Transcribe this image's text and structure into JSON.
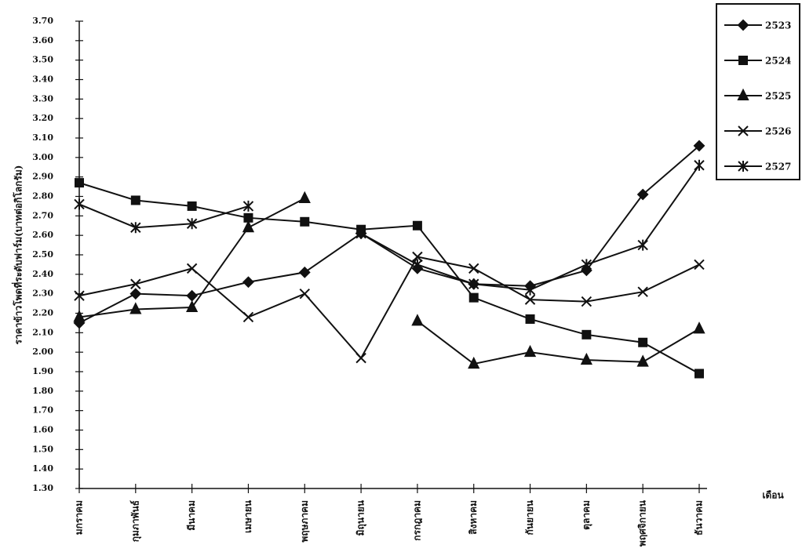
{
  "chart_data": {
    "type": "line",
    "y_label": "ราคาข้าวโพดที่ระดับฟาร์ม(บาทต่อกิโลกรัม)",
    "x_label": "เดือน",
    "categories": [
      "มกราคม",
      "กุมภาพันธ์",
      "มีนาคม",
      "เมษายน",
      "พฤษภาคม",
      "มิถุนายน",
      "กรกฎาคม",
      "สิงหาคม",
      "กันยายน",
      "ตุลาคม",
      "พฤศจิกายน",
      "ธันวาคม"
    ],
    "series": [
      {
        "name": "2523",
        "color": "#111111",
        "marker": "diamond",
        "values": [
          2.15,
          2.3,
          2.29,
          2.36,
          2.41,
          2.61,
          2.43,
          2.35,
          2.34,
          2.42,
          2.81,
          3.06
        ]
      },
      {
        "name": "2524",
        "color": "#111111",
        "marker": "square",
        "values": [
          2.87,
          2.78,
          2.75,
          2.69,
          2.67,
          2.63,
          2.65,
          2.28,
          2.17,
          2.09,
          2.05,
          1.89
        ]
      },
      {
        "name": "2525",
        "color": "#111111",
        "marker": "triangle",
        "values": [
          2.18,
          2.22,
          2.23,
          2.64,
          2.79,
          null,
          2.16,
          1.94,
          2.0,
          1.96,
          1.95,
          2.12
        ]
      },
      {
        "name": "2526",
        "color": "#111111",
        "marker": "x",
        "values": [
          2.29,
          2.35,
          2.43,
          2.18,
          2.3,
          1.97,
          2.49,
          2.43,
          2.27,
          2.26,
          2.31,
          2.45
        ]
      },
      {
        "name": "2527",
        "color": "#111111",
        "marker": "asterisk",
        "values": [
          2.76,
          2.64,
          2.66,
          2.75,
          null,
          2.61,
          2.45,
          2.35,
          2.32,
          2.45,
          2.55,
          2.96
        ]
      }
    ],
    "ylim": [
      1.3,
      3.7
    ],
    "yticks": [
      {
        "value": 1.3,
        "label": "1.30"
      },
      {
        "value": 1.4,
        "label": "1.40"
      },
      {
        "value": 1.5,
        "label": "1.50"
      },
      {
        "value": 1.6,
        "label": "1.60"
      },
      {
        "value": 1.7,
        "label": "1.70"
      },
      {
        "value": 1.8,
        "label": "1.80"
      },
      {
        "value": 1.9,
        "label": "1.90"
      },
      {
        "value": 2.0,
        "label": "2.00"
      },
      {
        "value": 2.1,
        "label": "2.10"
      },
      {
        "value": 2.2,
        "label": "2.20"
      },
      {
        "value": 2.3,
        "label": "2.30"
      },
      {
        "value": 2.4,
        "label": "2.40"
      },
      {
        "value": 2.5,
        "label": "2.50"
      },
      {
        "value": 2.6,
        "label": "2.60"
      },
      {
        "value": 2.7,
        "label": "2.70"
      },
      {
        "value": 2.8,
        "label": "2.80"
      },
      {
        "value": 2.9,
        "label": "2.90"
      },
      {
        "value": 3.0,
        "label": "3.00"
      },
      {
        "value": 3.1,
        "label": "3.10"
      },
      {
        "value": 3.2,
        "label": "3.20"
      },
      {
        "value": 3.3,
        "label": "3.30"
      },
      {
        "value": 3.4,
        "label": "3.40"
      },
      {
        "value": 3.5,
        "label": "3.50"
      },
      {
        "value": 3.6,
        "label": "3.60"
      },
      {
        "value": 3.7,
        "label": "3.70"
      }
    ],
    "grid": false,
    "legend": "top-right"
  }
}
